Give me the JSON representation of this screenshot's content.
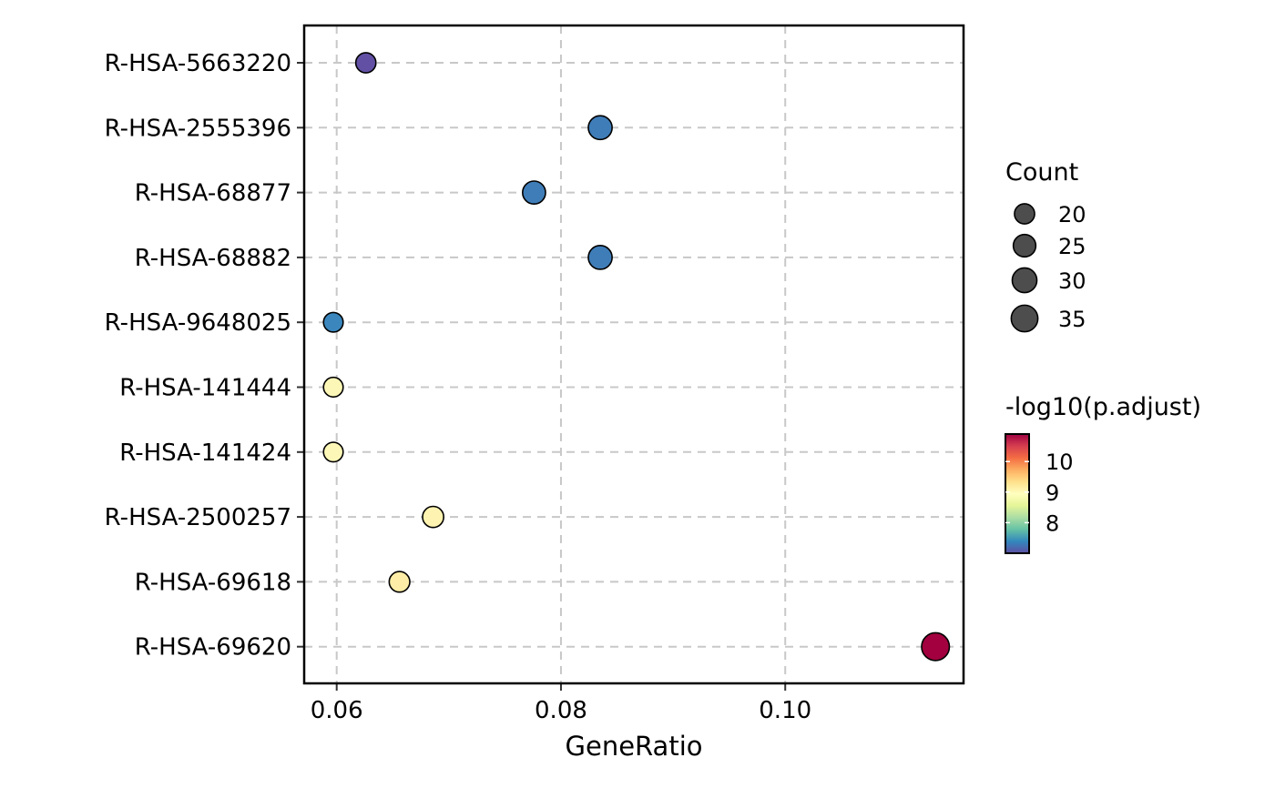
{
  "chart_data": {
    "type": "scatter",
    "title": "",
    "xlabel": "GeneRatio",
    "ylabel": "",
    "xlim": [
      0.0571,
      0.1159
    ],
    "x_ticks": [
      0.06,
      0.08,
      0.1
    ],
    "x_tick_labels": [
      "0.06",
      "0.08",
      "0.10"
    ],
    "grid": true,
    "grid_style": "dashed",
    "categories": [
      "R-HSA-5663220",
      "R-HSA-2555396",
      "R-HSA-68877",
      "R-HSA-68882",
      "R-HSA-9648025",
      "R-HSA-141444",
      "R-HSA-141424",
      "R-HSA-2500257",
      "R-HSA-69618",
      "R-HSA-69620"
    ],
    "points": [
      {
        "category": "R-HSA-5663220",
        "x": 0.0626,
        "count": 20,
        "neg_log10_padj": 7.0,
        "color": "#6250a4"
      },
      {
        "category": "R-HSA-2555396",
        "x": 0.0835,
        "count": 28,
        "neg_log10_padj": 7.5,
        "color": "#3f7db8"
      },
      {
        "category": "R-HSA-68877",
        "x": 0.0776,
        "count": 26,
        "neg_log10_padj": 7.5,
        "color": "#3f7db8"
      },
      {
        "category": "R-HSA-68882",
        "x": 0.0835,
        "count": 28,
        "neg_log10_padj": 7.5,
        "color": "#3f7db8"
      },
      {
        "category": "R-HSA-9648025",
        "x": 0.0597,
        "count": 19,
        "neg_log10_padj": 7.6,
        "color": "#3b87bd"
      },
      {
        "category": "R-HSA-141444",
        "x": 0.0597,
        "count": 19,
        "neg_log10_padj": 9.0,
        "color": "#fdf7b7"
      },
      {
        "category": "R-HSA-141424",
        "x": 0.0597,
        "count": 19,
        "neg_log10_padj": 9.0,
        "color": "#fdf7b7"
      },
      {
        "category": "R-HSA-2500257",
        "x": 0.0686,
        "count": 22,
        "neg_log10_padj": 9.1,
        "color": "#fef3b0"
      },
      {
        "category": "R-HSA-69618",
        "x": 0.0656,
        "count": 21,
        "neg_log10_padj": 9.2,
        "color": "#feeda6"
      },
      {
        "category": "R-HSA-69620",
        "x": 0.1134,
        "count": 38,
        "neg_log10_padj": 10.8,
        "color": "#a2003f"
      }
    ],
    "legend": {
      "position": "right",
      "size_title": "Count",
      "size_values": [
        20,
        25,
        30,
        35
      ],
      "size_labels": [
        "20",
        "25",
        "30",
        "35"
      ],
      "size_key_color": "#4d4d4d",
      "color_title": "-log10(p.adjust)",
      "color_range": [
        7.0,
        10.9
      ],
      "color_ticks": [
        8,
        9,
        10
      ],
      "color_tick_labels": [
        "8",
        "9",
        "10"
      ],
      "color_scale": [
        "#5e4fa2",
        "#3288bd",
        "#66c2a5",
        "#abdda4",
        "#e6f598",
        "#ffffbf",
        "#fee08b",
        "#fdae61",
        "#f46d43",
        "#d53e4f",
        "#9e0142"
      ]
    }
  }
}
